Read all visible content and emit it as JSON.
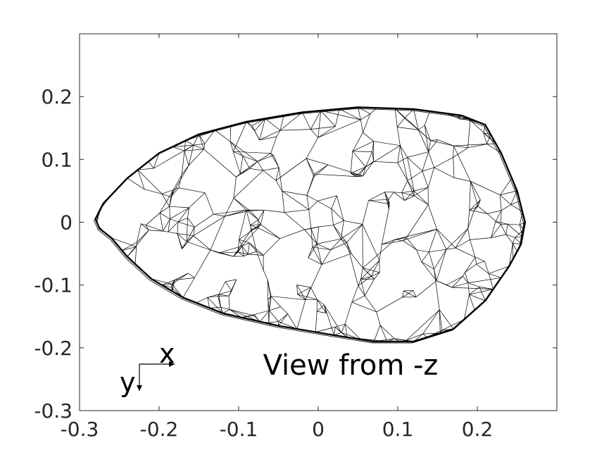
{
  "chart_data": {
    "type": "wireframe",
    "title": "",
    "xlabel": "",
    "ylabel": "",
    "xlim": [
      -0.3,
      0.3
    ],
    "ylim": [
      -0.3,
      0.3
    ],
    "x_ticks": [
      -0.3,
      -0.2,
      -0.1,
      0,
      0.1,
      0.2
    ],
    "x_tick_labels": [
      "-0.3",
      "-0.2",
      "-0.1",
      "0",
      "0.1",
      "0.2"
    ],
    "y_ticks": [
      -0.3,
      -0.2,
      -0.1,
      0,
      0.1,
      0.2
    ],
    "y_tick_labels": [
      "-0.3",
      "-0.2",
      "-0.1",
      "0",
      "0.1",
      "0.2"
    ],
    "grid": false,
    "annotation_text": "View from -z",
    "axis_indicator": {
      "horizontal_label": "x",
      "vertical_label": "y"
    },
    "mesh_color": "#000000",
    "outline": {
      "x": [
        -0.28,
        -0.27,
        -0.24,
        -0.2,
        -0.15,
        -0.09,
        -0.02,
        0.05,
        0.12,
        0.18,
        0.21,
        0.23,
        0.25,
        0.26,
        0.255,
        0.24,
        0.21,
        0.17,
        0.12,
        0.07,
        0.02,
        -0.05,
        -0.12,
        -0.17,
        -0.21,
        -0.24,
        -0.26,
        -0.275
      ],
      "y": [
        0.005,
        0.03,
        0.07,
        0.11,
        0.14,
        0.16,
        0.175,
        0.183,
        0.18,
        0.17,
        0.155,
        0.11,
        0.05,
        0.0,
        -0.035,
        -0.07,
        -0.125,
        -0.17,
        -0.19,
        -0.19,
        -0.18,
        -0.165,
        -0.145,
        -0.12,
        -0.09,
        -0.055,
        -0.025,
        -0.01
      ]
    }
  }
}
